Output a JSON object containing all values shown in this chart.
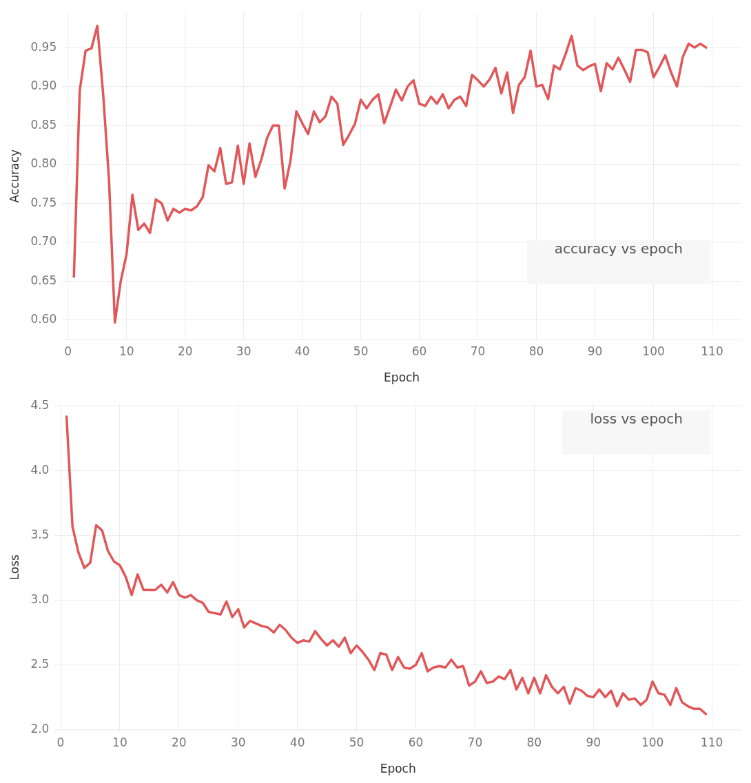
{
  "chart_data": [
    {
      "type": "line",
      "xlabel": "Epoch",
      "ylabel": "Accuracy",
      "annotations": [
        "accuracy vs epoch"
      ],
      "grid": true,
      "legend": false,
      "x": [
        1,
        2,
        3,
        4,
        5,
        6,
        7,
        8,
        9,
        10,
        11,
        12,
        13,
        14,
        15,
        16,
        17,
        18,
        19,
        20,
        21,
        22,
        23,
        24,
        25,
        26,
        27,
        28,
        29,
        30,
        31,
        32,
        33,
        34,
        35,
        36,
        37,
        38,
        39,
        40,
        41,
        42,
        43,
        44,
        45,
        46,
        47,
        48,
        49,
        50,
        51,
        52,
        53,
        54,
        55,
        56,
        57,
        58,
        59,
        60,
        61,
        62,
        63,
        64,
        65,
        66,
        67,
        68,
        69,
        70,
        71,
        72,
        73,
        74,
        75,
        76,
        77,
        78,
        79,
        80,
        81,
        82,
        83,
        84,
        85,
        86,
        87,
        88,
        89,
        90,
        91,
        92,
        93,
        94,
        95,
        96,
        97,
        98,
        99,
        100,
        101,
        102,
        103,
        104,
        105,
        106,
        107,
        108,
        109
      ],
      "series": [
        {
          "color": "#e15759",
          "values": [
            0.656,
            0.895,
            0.946,
            0.949,
            0.978,
            0.89,
            0.78,
            0.597,
            0.65,
            0.685,
            0.761,
            0.716,
            0.724,
            0.712,
            0.755,
            0.75,
            0.728,
            0.743,
            0.738,
            0.743,
            0.741,
            0.746,
            0.758,
            0.799,
            0.791,
            0.821,
            0.775,
            0.777,
            0.824,
            0.775,
            0.827,
            0.784,
            0.806,
            0.834,
            0.85,
            0.85,
            0.769,
            0.805,
            0.868,
            0.853,
            0.839,
            0.868,
            0.854,
            0.862,
            0.887,
            0.878,
            0.825,
            0.838,
            0.852,
            0.883,
            0.872,
            0.883,
            0.89,
            0.853,
            0.874,
            0.896,
            0.882,
            0.9,
            0.908,
            0.878,
            0.875,
            0.887,
            0.878,
            0.89,
            0.872,
            0.883,
            0.887,
            0.875,
            0.915,
            0.908,
            0.9,
            0.909,
            0.924,
            0.891,
            0.918,
            0.866,
            0.902,
            0.912,
            0.946,
            0.9,
            0.902,
            0.884,
            0.927,
            0.922,
            0.942,
            0.965,
            0.927,
            0.921,
            0.926,
            0.929,
            0.894,
            0.93,
            0.922,
            0.937,
            0.922,
            0.906,
            0.947,
            0.947,
            0.944,
            0.912,
            0.925,
            0.94,
            0.918,
            0.9,
            0.938,
            0.955,
            0.95,
            0.955,
            0.95
          ]
        }
      ],
      "xlim": [
        -1,
        115
      ],
      "xticks": [
        0,
        10,
        20,
        30,
        40,
        50,
        60,
        70,
        80,
        90,
        100,
        110
      ],
      "ylim": [
        0.575,
        0.995
      ],
      "yticks": [
        {
          "value": 0.6,
          "label": "0.60"
        },
        0.65,
        {
          "value": 0.7,
          "label": "0.70"
        },
        0.75,
        {
          "value": 0.8,
          "label": "0.80"
        },
        0.85,
        {
          "value": 0.9,
          "label": "0.90"
        },
        0.95
      ]
    },
    {
      "type": "line",
      "xlabel": "Epoch",
      "ylabel": "Loss",
      "annotations": [
        "loss vs epoch"
      ],
      "grid": true,
      "legend": false,
      "x": [
        1,
        2,
        3,
        4,
        5,
        6,
        7,
        8,
        9,
        10,
        11,
        12,
        13,
        14,
        15,
        16,
        17,
        18,
        19,
        20,
        21,
        22,
        23,
        24,
        25,
        26,
        27,
        28,
        29,
        30,
        31,
        32,
        33,
        34,
        35,
        36,
        37,
        38,
        39,
        40,
        41,
        42,
        43,
        44,
        45,
        46,
        47,
        48,
        49,
        50,
        51,
        52,
        53,
        54,
        55,
        56,
        57,
        58,
        59,
        60,
        61,
        62,
        63,
        64,
        65,
        66,
        67,
        68,
        69,
        70,
        71,
        72,
        73,
        74,
        75,
        76,
        77,
        78,
        79,
        80,
        81,
        82,
        83,
        84,
        85,
        86,
        87,
        88,
        89,
        90,
        91,
        92,
        93,
        94,
        95,
        96,
        97,
        98,
        99,
        100,
        101,
        102,
        103,
        104,
        105,
        106,
        107,
        108,
        109
      ],
      "series": [
        {
          "color": "#e15759",
          "values": [
            4.42,
            3.57,
            3.37,
            3.25,
            3.29,
            3.58,
            3.54,
            3.38,
            3.3,
            3.27,
            3.18,
            3.04,
            3.2,
            3.08,
            3.08,
            3.08,
            3.12,
            3.06,
            3.14,
            3.04,
            3.02,
            3.04,
            3.0,
            2.98,
            2.91,
            2.9,
            2.89,
            2.99,
            2.87,
            2.93,
            2.79,
            2.84,
            2.82,
            2.8,
            2.79,
            2.75,
            2.81,
            2.77,
            2.71,
            2.67,
            2.69,
            2.68,
            2.76,
            2.7,
            2.65,
            2.69,
            2.64,
            2.71,
            2.59,
            2.65,
            2.6,
            2.54,
            2.46,
            2.59,
            2.58,
            2.46,
            2.56,
            2.48,
            2.47,
            2.5,
            2.59,
            2.45,
            2.48,
            2.49,
            2.48,
            2.54,
            2.48,
            2.49,
            2.34,
            2.37,
            2.45,
            2.36,
            2.37,
            2.41,
            2.39,
            2.46,
            2.31,
            2.4,
            2.28,
            2.4,
            2.28,
            2.42,
            2.33,
            2.28,
            2.33,
            2.2,
            2.32,
            2.3,
            2.26,
            2.25,
            2.31,
            2.25,
            2.3,
            2.18,
            2.28,
            2.23,
            2.24,
            2.19,
            2.23,
            2.37,
            2.28,
            2.27,
            2.19,
            2.32,
            2.21,
            2.18,
            2.16,
            2.16,
            2.12
          ]
        }
      ],
      "xlim": [
        -1,
        115
      ],
      "xticks": [
        0,
        10,
        20,
        30,
        40,
        50,
        60,
        70,
        80,
        90,
        100,
        110
      ],
      "ylim": [
        1.99,
        4.52
      ],
      "yticks": [
        {
          "value": 2,
          "label": "2.0"
        },
        2.5,
        {
          "value": 3,
          "label": "3.0"
        },
        3.5,
        {
          "value": 4,
          "label": "4.0"
        },
        4.5
      ]
    }
  ]
}
